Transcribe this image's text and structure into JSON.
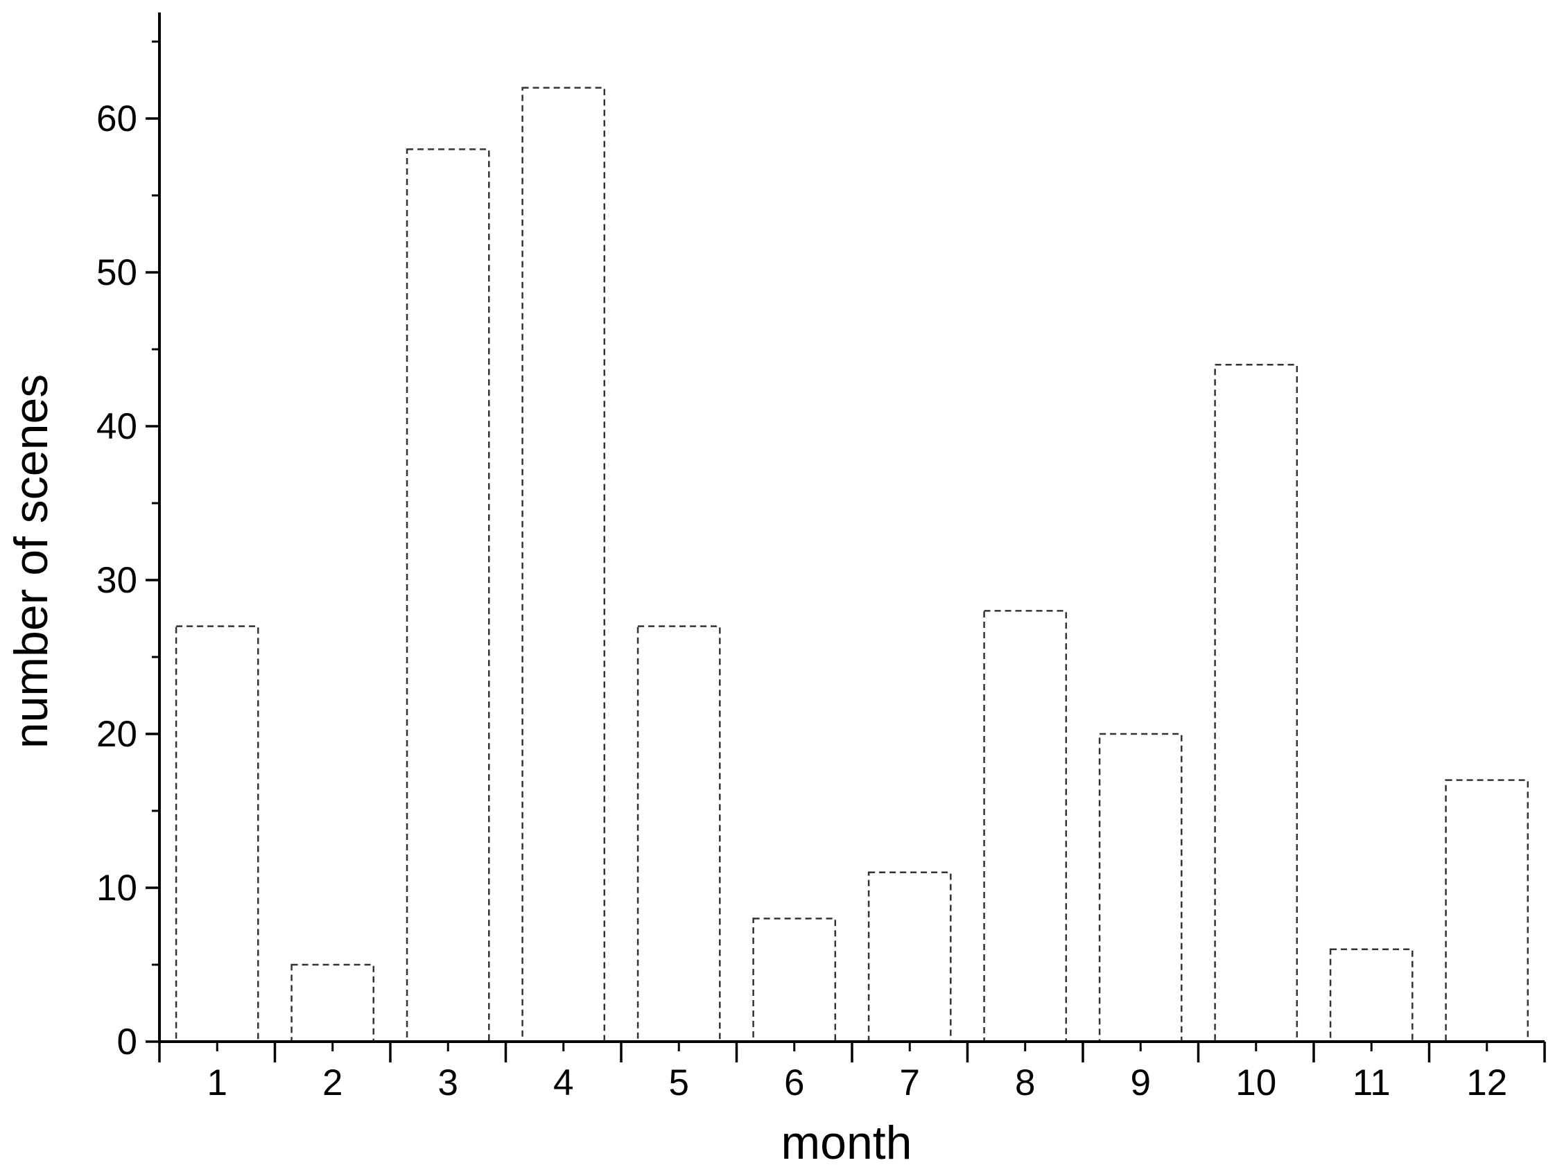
{
  "chart_data": {
    "type": "bar",
    "title": "",
    "xlabel": "month",
    "ylabel": "number of scenes",
    "categories": [
      "1",
      "2",
      "3",
      "4",
      "5",
      "6",
      "7",
      "8",
      "9",
      "10",
      "11",
      "12"
    ],
    "values": [
      27,
      5,
      58,
      62,
      27,
      8,
      11,
      28,
      20,
      44,
      6,
      17
    ],
    "ylim": [
      0,
      67
    ],
    "yticks": [
      0,
      10,
      20,
      30,
      40,
      50,
      60
    ],
    "yticks_minor": [
      5,
      15,
      25,
      35,
      45,
      55,
      65
    ],
    "grid": false,
    "legend": "none",
    "bar_style": "dashed outline, no fill",
    "colors": {
      "bar_stroke": "#333333",
      "axis": "#000000",
      "background": "#ffffff"
    }
  }
}
